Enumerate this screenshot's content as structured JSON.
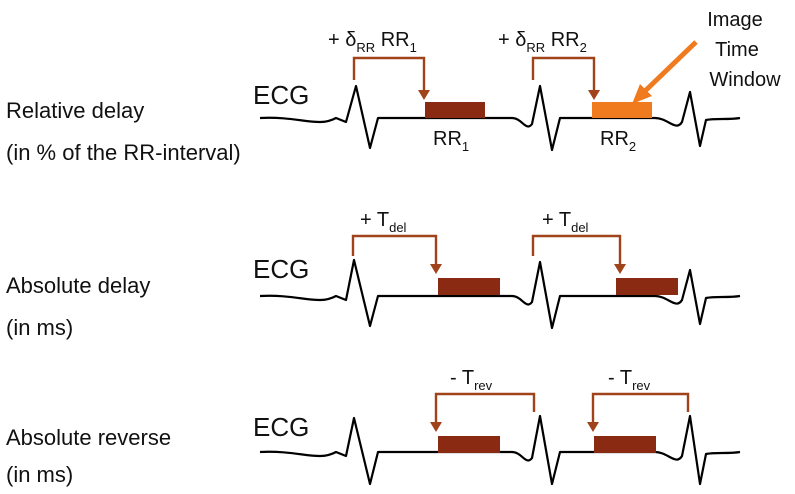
{
  "colors": {
    "bracket": "#a0421a",
    "window": "#8b2a12",
    "window_highlight": "#f07a1e",
    "wave": "#000000"
  },
  "rows": [
    {
      "label_line1": "Relative delay",
      "label_line2": "(in %  of the RR-interval)",
      "ecg_label": "ECG",
      "annotations": [
        {
          "prefix": "+ δ",
          "sub": "RR",
          "main": " RR",
          "sub2": "1"
        },
        {
          "prefix": "+ δ",
          "sub": "RR",
          "main": " RR",
          "sub2": "2"
        }
      ],
      "window_labels": [
        {
          "main": "RR",
          "sub": "1"
        },
        {
          "main": "RR",
          "sub": "2"
        }
      ]
    },
    {
      "label_line1": "Absolute delay",
      "label_line2": "(in ms)",
      "ecg_label": "ECG",
      "annotations": [
        {
          "prefix": "+ T",
          "sub": "del"
        },
        {
          "prefix": "+ T",
          "sub": "del"
        }
      ]
    },
    {
      "label_line1": "Absolute reverse",
      "label_line2": "(in ms)",
      "ecg_label": "ECG",
      "annotations": [
        {
          "prefix": "- T",
          "sub": "rev"
        },
        {
          "prefix": "- T",
          "sub": "rev"
        }
      ]
    }
  ],
  "callout": {
    "line1": "Image",
    "line2": "Time",
    "line3": "Window"
  }
}
